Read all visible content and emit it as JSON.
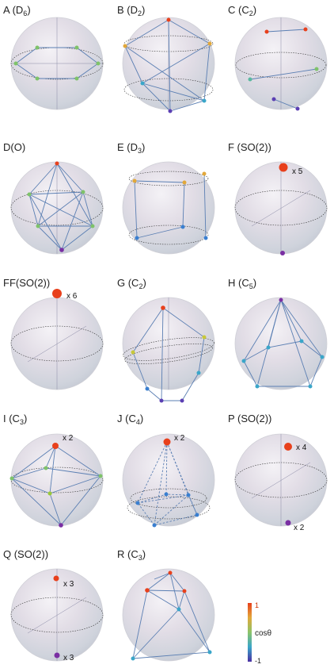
{
  "colors": {
    "cos_pos": "#e8401c",
    "cos_mid_pos": "#e2a83a",
    "cos_zero": "#7fc36a",
    "cos_mid_neg": "#3aa6c9",
    "cos_neg": "#5b3fb3",
    "cos_neg_deep": "#7a2fa3",
    "edge": "#5b7fb3"
  },
  "panels": [
    {
      "key": "A",
      "title": "A (D",
      "title_sub": "6",
      "title_end": ")"
    },
    {
      "key": "B",
      "title": "B (D",
      "title_sub": "2",
      "title_end": ")"
    },
    {
      "key": "C",
      "title": "C (C",
      "title_sub": "2",
      "title_end": ")"
    },
    {
      "key": "D",
      "title": "D(O)",
      "title_sub": "",
      "title_end": ""
    },
    {
      "key": "E",
      "title": "E (D",
      "title_sub": "3",
      "title_end": ")"
    },
    {
      "key": "F",
      "title": "F (SO(2))",
      "title_sub": "",
      "title_end": "",
      "labels": [
        "x 5"
      ]
    },
    {
      "key": "FF",
      "title": "FF(SO(2))",
      "title_sub": "",
      "title_end": "",
      "labels": [
        "x 6"
      ]
    },
    {
      "key": "G",
      "title": "G (C",
      "title_sub": "2",
      "title_end": ")"
    },
    {
      "key": "H",
      "title": "H (C",
      "title_sub": "5",
      "title_end": ")"
    },
    {
      "key": "I",
      "title": "I (C",
      "title_sub": "3",
      "title_end": ")",
      "labels": [
        "x 2"
      ]
    },
    {
      "key": "J",
      "title": "J (C",
      "title_sub": "4",
      "title_end": ")",
      "labels": [
        "x 2"
      ]
    },
    {
      "key": "P",
      "title": "P (SO(2))",
      "title_sub": "",
      "title_end": "",
      "labels": [
        "x 4",
        "x 2"
      ]
    },
    {
      "key": "Q",
      "title": "Q (SO(2))",
      "title_sub": "",
      "title_end": "",
      "labels": [
        "x 3",
        "x 3"
      ]
    },
    {
      "key": "R",
      "title": "R (C",
      "title_sub": "3",
      "title_end": ")"
    }
  ],
  "colorbar": {
    "label": "cosθ",
    "max": "1",
    "min": "-1"
  }
}
